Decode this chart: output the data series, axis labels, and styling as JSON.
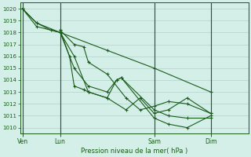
{
  "bg_color": "#d4eee8",
  "grid_color": "#b0d4c8",
  "line_color": "#1a5c1a",
  "marker_color": "#1a5c1a",
  "xlabel": "Pression niveau de la mer( hPa )",
  "ylim": [
    1009.5,
    1020.5
  ],
  "yticks": [
    1010,
    1011,
    1012,
    1013,
    1014,
    1015,
    1016,
    1017,
    1018,
    1019,
    1020
  ],
  "xtick_labels": [
    "Ven",
    "Lun",
    "Sam",
    "Dim"
  ],
  "xtick_positions": [
    0,
    8,
    28,
    40
  ],
  "xlim": [
    -0.5,
    48
  ],
  "vlines_x": [
    0,
    8,
    28,
    40
  ],
  "series": [
    [
      0,
      1020.0,
      3,
      1018.8,
      8,
      1018.0,
      18,
      1016.5,
      28,
      1015.0,
      40,
      1013.0
    ],
    [
      0,
      1020.0,
      3,
      1018.5,
      8,
      1018.0,
      11,
      1015.0,
      14,
      1013.5,
      18,
      1013.0,
      20,
      1014.0,
      21,
      1014.2,
      28,
      1011.5,
      31,
      1011.0,
      35,
      1010.8,
      40,
      1010.8
    ],
    [
      0,
      1020.0,
      3,
      1018.8,
      6,
      1018.2,
      8,
      1018.0,
      11,
      1016.0,
      14,
      1013.0,
      18,
      1012.5,
      20,
      1014.0,
      21,
      1014.2,
      28,
      1010.8,
      31,
      1010.3,
      35,
      1010.0,
      40,
      1011.0
    ],
    [
      8,
      1018.2,
      11,
      1017.0,
      13,
      1016.8,
      14,
      1015.5,
      18,
      1014.5,
      22,
      1012.5,
      25,
      1011.5,
      28,
      1011.8,
      31,
      1012.2,
      35,
      1012.0,
      40,
      1011.2
    ],
    [
      8,
      1018.2,
      10,
      1016.0,
      11,
      1013.5,
      13,
      1013.2,
      14,
      1013.0,
      18,
      1012.5,
      22,
      1011.5,
      25,
      1012.5,
      28,
      1011.2,
      31,
      1011.5,
      35,
      1012.5,
      40,
      1011.2
    ]
  ],
  "fig_width": 3.2,
  "fig_height": 2.0,
  "dpi": 100
}
